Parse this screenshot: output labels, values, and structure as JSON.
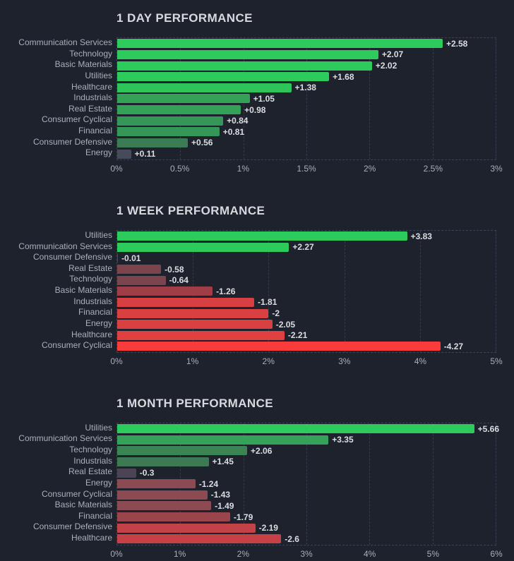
{
  "accent_colors": {
    "background": "#1E222D",
    "title_text": "#D7D9DE",
    "label_text": "#A9AFBB",
    "value_text": "#DBDDE1",
    "gridline": "#3A4155",
    "bright_green": "#2DCB5C",
    "bright_red": "#F93B3B",
    "neutral_gray": "#464B59"
  },
  "chart_data": [
    {
      "type": "bar",
      "orientation": "horizontal",
      "title": "1 DAY PERFORMANCE",
      "xlabel": "",
      "ylabel": "",
      "xlim": [
        0,
        3
      ],
      "x_ticks": [
        "0%",
        "0.5%",
        "1%",
        "1.5%",
        "2%",
        "2.5%",
        "3%"
      ],
      "grid": "dashed-vertical",
      "categories": [
        "Communication Services",
        "Technology",
        "Basic Materials",
        "Utilities",
        "Healthcare",
        "Industrials",
        "Real Estate",
        "Consumer Cyclical",
        "Financial",
        "Consumer Defensive",
        "Energy"
      ],
      "values": [
        2.58,
        2.07,
        2.02,
        1.68,
        1.38,
        1.05,
        0.98,
        0.84,
        0.81,
        0.56,
        0.11
      ],
      "value_labels": [
        "+2.58",
        "+2.07",
        "+2.02",
        "+1.68",
        "+1.38",
        "+1.05",
        "+0.98",
        "+0.84",
        "+0.81",
        "+0.56",
        "+0.11"
      ],
      "bar_colors": [
        "#2DCB5C",
        "#2DCB5C",
        "#2DCB5C",
        "#2DCB5C",
        "#2FC45A",
        "#33A156",
        "#33A156",
        "#349757",
        "#349757",
        "#3C7C55",
        "#464B59"
      ]
    },
    {
      "type": "bar",
      "orientation": "horizontal",
      "title": "1 WEEK PERFORMANCE",
      "xlabel": "",
      "ylabel": "",
      "xlim": [
        0,
        5
      ],
      "x_ticks": [
        "0%",
        "1%",
        "2%",
        "3%",
        "4%",
        "5%"
      ],
      "grid": "dashed-vertical",
      "categories": [
        "Utilities",
        "Communication Services",
        "Consumer Defensive",
        "Real Estate",
        "Technology",
        "Basic Materials",
        "Industrials",
        "Financial",
        "Energy",
        "Healthcare",
        "Consumer Cyclical"
      ],
      "values": [
        3.83,
        2.27,
        -0.01,
        -0.58,
        -0.64,
        -1.26,
        -1.81,
        -2,
        -2.05,
        -2.21,
        -4.27
      ],
      "value_labels": [
        "+3.83",
        "+2.27",
        "-0.01",
        "-0.58",
        "-0.64",
        "-1.26",
        "-1.81",
        "-2",
        "-2.05",
        "-2.21",
        "-4.27"
      ],
      "bar_colors": [
        "#2DCB5C",
        "#2DCB5C",
        "#464B59",
        "#7C454E",
        "#7C454E",
        "#A03E47",
        "#D64042",
        "#D94041",
        "#D94041",
        "#E04040",
        "#F93B3B"
      ]
    },
    {
      "type": "bar",
      "orientation": "horizontal",
      "title": "1 MONTH PERFORMANCE",
      "xlabel": "",
      "ylabel": "",
      "xlim": [
        0,
        6
      ],
      "x_ticks": [
        "0%",
        "1%",
        "2%",
        "3%",
        "4%",
        "5%",
        "6%"
      ],
      "grid": "dashed-vertical",
      "categories": [
        "Utilities",
        "Communication Services",
        "Technology",
        "Industrials",
        "Real Estate",
        "Energy",
        "Consumer Cyclical",
        "Basic Materials",
        "Financial",
        "Consumer Defensive",
        "Healthcare"
      ],
      "values": [
        5.66,
        3.35,
        2.06,
        1.45,
        -0.3,
        -1.24,
        -1.43,
        -1.49,
        -1.79,
        -2.19,
        -2.6
      ],
      "value_labels": [
        "+5.66",
        "+3.35",
        "+2.06",
        "+1.45",
        "-0.3",
        "-1.24",
        "-1.43",
        "-1.49",
        "-1.79",
        "-2.19",
        "-2.6"
      ],
      "bar_colors": [
        "#2DCB5C",
        "#35A259",
        "#3B8454",
        "#3D7A53",
        "#4A4455",
        "#8C4A52",
        "#8C4A52",
        "#8C4A52",
        "#9A444C",
        "#C24247",
        "#C64146"
      ]
    }
  ]
}
